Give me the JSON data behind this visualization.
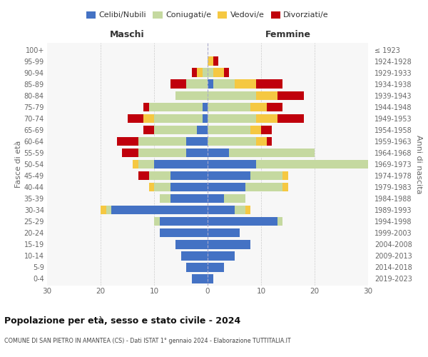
{
  "age_groups": [
    "0-4",
    "5-9",
    "10-14",
    "15-19",
    "20-24",
    "25-29",
    "30-34",
    "35-39",
    "40-44",
    "45-49",
    "50-54",
    "55-59",
    "60-64",
    "65-69",
    "70-74",
    "75-79",
    "80-84",
    "85-89",
    "90-94",
    "95-99",
    "100+"
  ],
  "birth_years": [
    "2019-2023",
    "2014-2018",
    "2009-2013",
    "2004-2008",
    "1999-2003",
    "1994-1998",
    "1989-1993",
    "1984-1988",
    "1979-1983",
    "1974-1978",
    "1969-1973",
    "1964-1968",
    "1959-1963",
    "1954-1958",
    "1949-1953",
    "1944-1948",
    "1939-1943",
    "1934-1938",
    "1929-1933",
    "1924-1928",
    "≤ 1923"
  ],
  "colors": {
    "celibe": "#4472C4",
    "coniugato": "#C5D9A0",
    "vedovo": "#F5C842",
    "divorziato": "#C0000C"
  },
  "males": {
    "celibe": [
      3,
      4,
      5,
      6,
      9,
      9,
      18,
      7,
      7,
      7,
      10,
      4,
      4,
      2,
      1,
      1,
      0,
      0,
      0,
      0,
      0
    ],
    "coniugato": [
      0,
      0,
      0,
      0,
      0,
      1,
      1,
      2,
      3,
      4,
      3,
      9,
      9,
      8,
      9,
      10,
      6,
      4,
      1,
      0,
      0
    ],
    "vedovo": [
      0,
      0,
      0,
      0,
      0,
      0,
      1,
      0,
      1,
      0,
      1,
      0,
      0,
      0,
      2,
      0,
      0,
      0,
      1,
      0,
      0
    ],
    "divorziato": [
      0,
      0,
      0,
      0,
      0,
      0,
      0,
      0,
      0,
      2,
      0,
      3,
      4,
      2,
      3,
      1,
      0,
      3,
      1,
      0,
      0
    ]
  },
  "females": {
    "celibe": [
      1,
      3,
      5,
      8,
      6,
      13,
      5,
      3,
      7,
      8,
      9,
      4,
      0,
      0,
      0,
      0,
      0,
      1,
      0,
      0,
      0
    ],
    "coniugato": [
      0,
      0,
      0,
      0,
      0,
      1,
      2,
      4,
      7,
      6,
      26,
      16,
      9,
      8,
      9,
      8,
      9,
      4,
      1,
      0,
      0
    ],
    "vedovo": [
      0,
      0,
      0,
      0,
      0,
      0,
      1,
      0,
      1,
      1,
      1,
      0,
      2,
      2,
      4,
      3,
      4,
      4,
      2,
      1,
      0
    ],
    "divorziato": [
      0,
      0,
      0,
      0,
      0,
      0,
      0,
      0,
      0,
      0,
      0,
      0,
      1,
      2,
      5,
      3,
      5,
      5,
      1,
      1,
      0
    ]
  },
  "xlim": 30,
  "title": "Popolazione per età, sesso e stato civile - 2024",
  "subtitle": "COMUNE DI SAN PIETRO IN AMANTEA (CS) - Dati ISTAT 1° gennaio 2024 - Elaborazione TUTTITALIA.IT",
  "xlabel_left": "Maschi",
  "xlabel_right": "Femmine",
  "ylabel_left": "Fasce di età",
  "ylabel_right": "Anni di nascita",
  "legend_labels": [
    "Celibi/Nubili",
    "Coniugati/e",
    "Vedovi/e",
    "Divorziati/e"
  ],
  "bg_color": "#FFFFFF",
  "grid_color": "#CCCCCC",
  "ax_bg_color": "#F7F7F7"
}
